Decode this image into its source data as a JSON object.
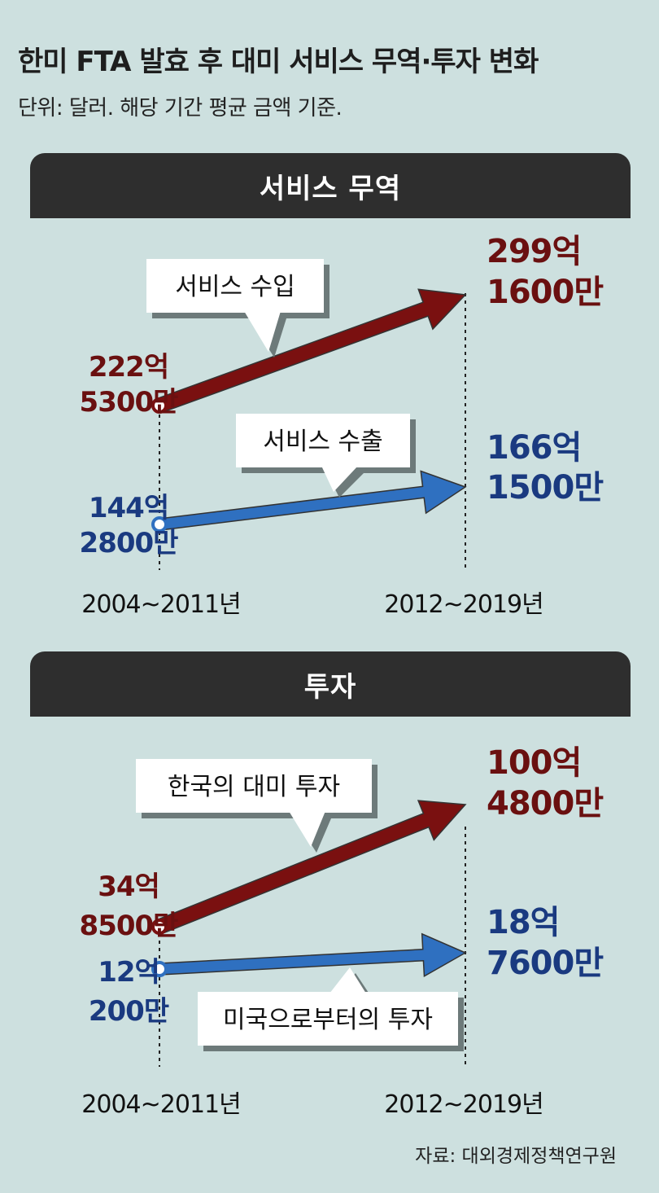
{
  "title": "한미 FTA 발효 후 대미 서비스 무역·투자 변화",
  "subtitle": "단위: 달러. 해당 기간 평균 금액 기준.",
  "source": "자료: 대외경제정책연구원",
  "colors": {
    "series_a": "#7a1010",
    "series_b": "#2f70c0",
    "label_a": "#6a1010",
    "label_b": "#1a3a80",
    "bar": "#2e2e2e"
  },
  "chart_data": [
    {
      "type": "line",
      "title": "서비스 무역",
      "categories": [
        "2004~2011년",
        "2012~2019년"
      ],
      "series": [
        {
          "name": "서비스 수입",
          "values": [
            22253000000,
            29916000000
          ],
          "labels": [
            [
              "222억",
              "5300만"
            ],
            [
              "299억",
              "1600만"
            ]
          ]
        },
        {
          "name": "서비스 수출",
          "values": [
            14428000000,
            16615000000
          ],
          "labels": [
            [
              "144억",
              "2800만"
            ],
            [
              "166억",
              "1500만"
            ]
          ]
        }
      ]
    },
    {
      "type": "line",
      "title": "투자",
      "categories": [
        "2004~2011년",
        "2012~2019년"
      ],
      "series": [
        {
          "name": "한국의 대미 투자",
          "values": [
            3485000000,
            10048000000
          ],
          "labels": [
            [
              "34억",
              "8500만"
            ],
            [
              "100억",
              "4800만"
            ]
          ]
        },
        {
          "name": "미국으로부터의 투자",
          "values": [
            1202000000,
            1876000000
          ],
          "labels": [
            [
              "12억",
              "200만"
            ],
            [
              "18억",
              "7600만"
            ]
          ]
        }
      ]
    }
  ]
}
